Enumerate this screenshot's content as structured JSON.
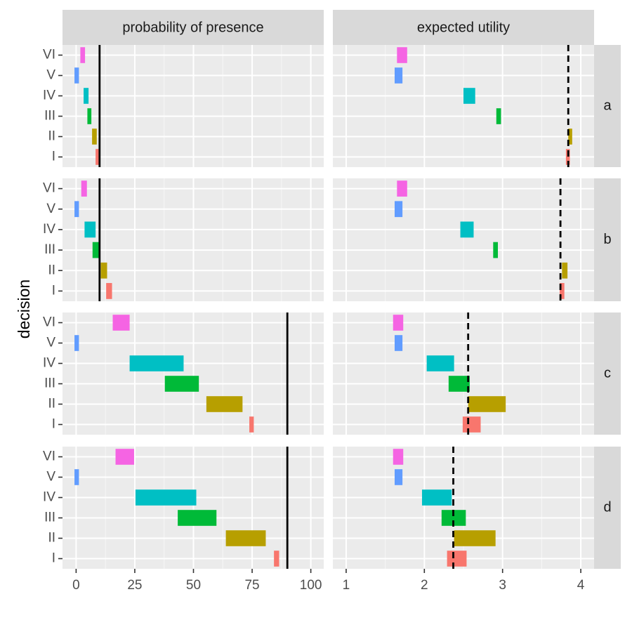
{
  "chart_data": {
    "type": "faceted-range-bar",
    "ylabel": "decision",
    "decisions": [
      "I",
      "II",
      "III",
      "IV",
      "V",
      "VI"
    ],
    "colors": {
      "I": "#F8766D",
      "II": "#B79F00",
      "III": "#00BA38",
      "IV": "#00BFC4",
      "V": "#619CFF",
      "VI": "#F564E3"
    },
    "columns": [
      {
        "key": "prob",
        "label": "probability of presence",
        "xlim": [
          -5.8,
          105.5
        ],
        "ticks": [
          0,
          25,
          50,
          75,
          100
        ],
        "ref_style": "solid"
      },
      {
        "key": "eu",
        "label": "expected utility",
        "xlim": [
          0.83,
          4.17
        ],
        "ticks": [
          1,
          2,
          3,
          4
        ],
        "ref_style": "dashed"
      }
    ],
    "rows": [
      {
        "label": "a",
        "prob": {
          "ref": 10,
          "ranges": {
            "I": [
              8.3,
              9.8
            ],
            "II": [
              6.8,
              8.8
            ],
            "III": [
              4.8,
              6.5
            ],
            "IV": [
              3.2,
              5.3
            ],
            "V": [
              -0.7,
              1.2
            ],
            "VI": [
              1.8,
              3.8
            ]
          }
        },
        "eu": {
          "ref": 3.84,
          "ranges": {
            "I": [
              3.81,
              3.86
            ],
            "II": [
              3.84,
              3.89
            ],
            "III": [
              2.92,
              2.98
            ],
            "IV": [
              2.5,
              2.65
            ],
            "V": [
              1.62,
              1.72
            ],
            "VI": [
              1.65,
              1.78
            ]
          }
        }
      },
      {
        "label": "b",
        "prob": {
          "ref": 10,
          "ranges": {
            "I": [
              12.8,
              15.3
            ],
            "II": [
              10.5,
              13.2
            ],
            "III": [
              7,
              10.1
            ],
            "IV": [
              3.6,
              8.3
            ],
            "V": [
              -0.7,
              1.2
            ],
            "VI": [
              2.2,
              4.6
            ]
          }
        },
        "eu": {
          "ref": 3.74,
          "ranges": {
            "I": [
              3.73,
              3.79
            ],
            "II": [
              3.76,
              3.83
            ],
            "III": [
              2.88,
              2.94
            ],
            "IV": [
              2.46,
              2.63
            ],
            "V": [
              1.62,
              1.72
            ],
            "VI": [
              1.65,
              1.78
            ]
          }
        }
      },
      {
        "label": "c",
        "prob": {
          "ref": 90,
          "ranges": {
            "I": [
              73.8,
              75.7
            ],
            "II": [
              55.5,
              70.9
            ],
            "III": [
              37.8,
              52.3
            ],
            "IV": [
              22.8,
              45.8
            ],
            "V": [
              -0.7,
              1.2
            ],
            "VI": [
              15.6,
              22.8
            ]
          }
        },
        "eu": {
          "ref": 2.56,
          "ranges": {
            "I": [
              2.49,
              2.72
            ],
            "II": [
              2.56,
              3.04
            ],
            "III": [
              2.31,
              2.58
            ],
            "IV": [
              2.03,
              2.38
            ],
            "V": [
              1.62,
              1.72
            ],
            "VI": [
              1.6,
              1.73
            ]
          }
        }
      },
      {
        "label": "d",
        "prob": {
          "ref": 90,
          "ranges": {
            "I": [
              84.3,
              86.5
            ],
            "II": [
              63.8,
              80.8
            ],
            "III": [
              43.3,
              59.8
            ],
            "IV": [
              25.3,
              51.2
            ],
            "V": [
              -0.7,
              1.2
            ],
            "VI": [
              16.8,
              24.7
            ]
          }
        },
        "eu": {
          "ref": 2.37,
          "ranges": {
            "I": [
              2.29,
              2.54
            ],
            "II": [
              2.38,
              2.91
            ],
            "III": [
              2.22,
              2.53
            ],
            "IV": [
              1.97,
              2.35
            ],
            "V": [
              1.62,
              1.72
            ],
            "VI": [
              1.6,
              1.73
            ]
          }
        }
      }
    ],
    "grid": true,
    "legend": "none"
  }
}
